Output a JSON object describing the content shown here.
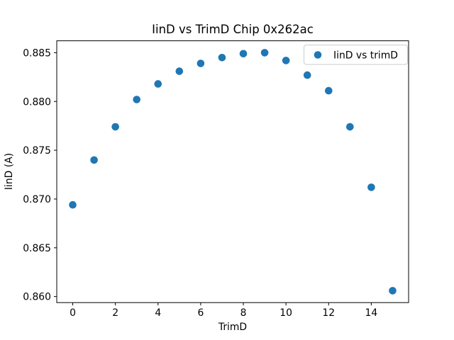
{
  "window": {
    "background": "#ffffff"
  },
  "chart_data": {
    "type": "scatter",
    "title": "IinD vs TrimD Chip 0x262ac",
    "xlabel": "TrimD",
    "ylabel": "IinD (A)",
    "legend": {
      "label": "IinD vs trimD",
      "location": "upper right",
      "border_color": "#cccccc",
      "background": "#ffffff"
    },
    "marker": {
      "shape": "circle",
      "color": "#1f77b4",
      "radius_px": 5.3
    },
    "x": [
      0,
      1,
      2,
      3,
      4,
      5,
      6,
      7,
      8,
      9,
      10,
      11,
      12,
      13,
      14,
      15
    ],
    "y": [
      0.8694,
      0.874,
      0.8774,
      0.8802,
      0.8818,
      0.8831,
      0.8839,
      0.8845,
      0.8849,
      0.885,
      0.8842,
      0.8827,
      0.8811,
      0.8774,
      0.8712,
      0.8606
    ],
    "xlim": [
      -0.75,
      15.75
    ],
    "ylim": [
      0.85938,
      0.88622
    ],
    "xticks": {
      "values": [
        0,
        2,
        4,
        6,
        8,
        10,
        12,
        14
      ],
      "labels": [
        "0",
        "2",
        "4",
        "6",
        "8",
        "10",
        "12",
        "14"
      ]
    },
    "yticks": {
      "values": [
        0.86,
        0.865,
        0.87,
        0.875,
        0.88,
        0.885
      ],
      "labels": [
        "0.860",
        "0.865",
        "0.870",
        "0.875",
        "0.880",
        "0.885"
      ]
    },
    "grid": false,
    "axis_color": "#000000",
    "text_color": "#000000"
  }
}
